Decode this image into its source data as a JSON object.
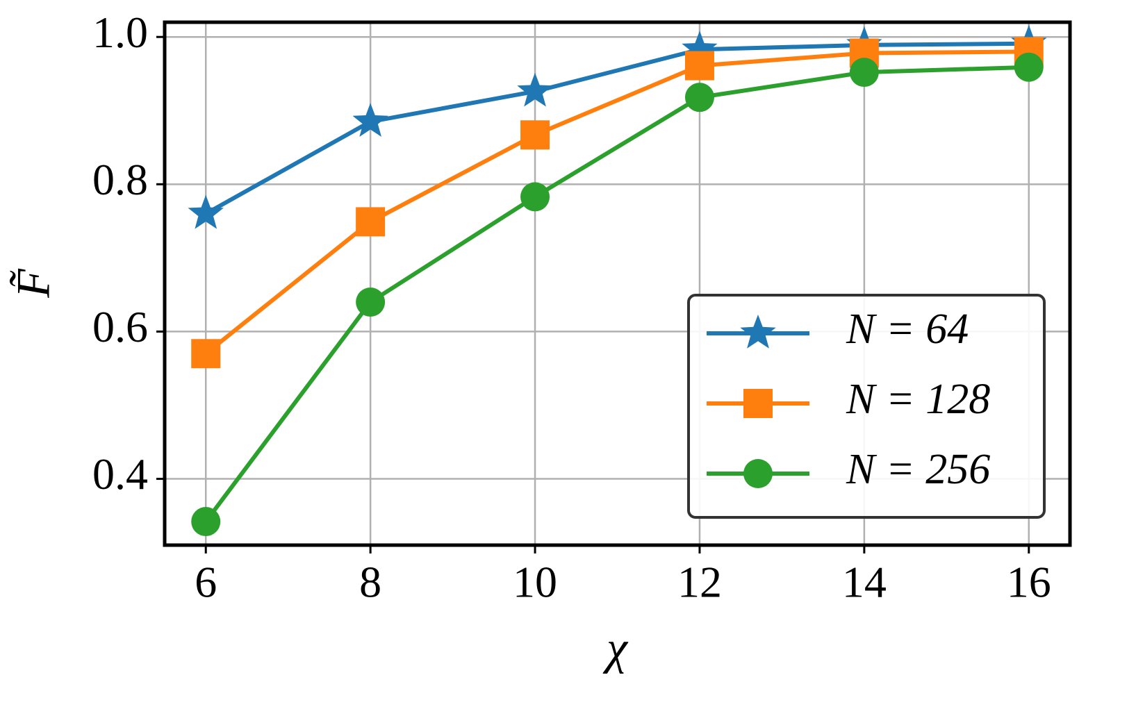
{
  "chart_data": {
    "type": "line",
    "x_label": "χ",
    "y_label": "F̃",
    "x": [
      6,
      8,
      10,
      12,
      14,
      16
    ],
    "series": [
      {
        "name": "N = 64",
        "color": "#1f77b4",
        "marker": "star",
        "values": [
          0.76,
          0.885,
          0.926,
          0.983,
          0.989,
          0.991
        ]
      },
      {
        "name": "N = 128",
        "color": "#ff7f0e",
        "marker": "square",
        "values": [
          0.57,
          0.749,
          0.867,
          0.961,
          0.978,
          0.98
        ]
      },
      {
        "name": "N = 256",
        "color": "#2ca02c",
        "marker": "circle",
        "values": [
          0.342,
          0.64,
          0.783,
          0.918,
          0.952,
          0.959
        ]
      }
    ],
    "xlim": [
      5.5,
      16.5
    ],
    "ylim": [
      0.31,
      1.02
    ],
    "xticks": [
      6,
      8,
      10,
      12,
      14,
      16
    ],
    "yticks": [
      0.4,
      0.6,
      0.8,
      {
        "value": 1,
        "label": "1.0"
      }
    ],
    "grid": true,
    "legend": "lower right"
  }
}
